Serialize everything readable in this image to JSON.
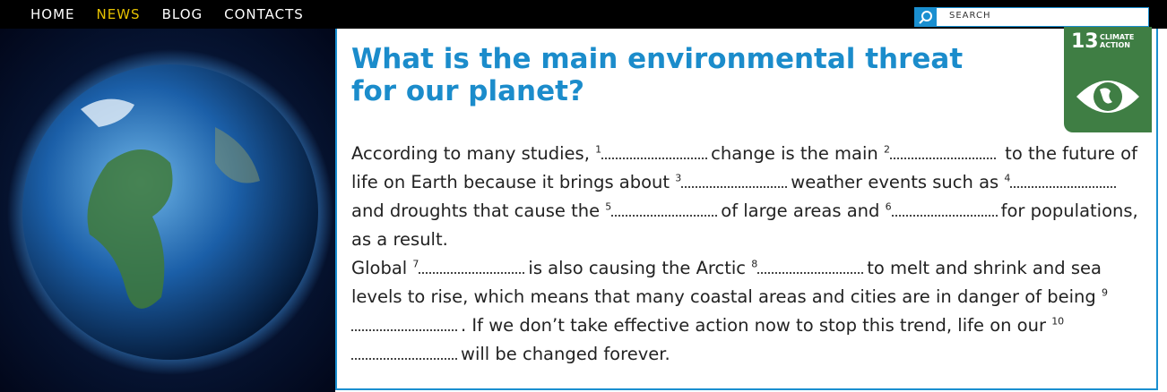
{
  "nav": [
    "HOME",
    "NEWS",
    "BLOG",
    "CONTACTS"
  ],
  "search": "SEARCH",
  "badge": {
    "number": "13",
    "label": "CLIMATE ACTION"
  },
  "article": {
    "title": "What is the main environmental threat for our planet?",
    "paragraphs": [
      [
        {
          "text": "According to many studies, "
        },
        {
          "gap": "1"
        },
        {
          "text": "change is the main "
        },
        {
          "gap": "2"
        },
        {
          "text": " to the future of life on Earth because it brings about "
        },
        {
          "gap": "3"
        },
        {
          "text": "weather events such as "
        },
        {
          "gap": "4"
        },
        {
          "text": "and droughts that cause the "
        },
        {
          "gap": "5"
        },
        {
          "text": "of large areas and "
        },
        {
          "gap": "6"
        },
        {
          "text": "for populations, as a result."
        }
      ],
      [
        {
          "text": "Global "
        },
        {
          "gap": "7"
        },
        {
          "text": "is also causing the Arctic "
        },
        {
          "gap": "8"
        },
        {
          "text": "to melt and shrink and sea levels to rise, which means that many coastal areas and cities are in danger of being "
        },
        {
          "gap": "9"
        },
        {
          "text": ". If we don’t take effective action now to stop this trend, life on our "
        },
        {
          "gap": "10"
        },
        {
          "text": "will be changed forever."
        }
      ]
    ]
  }
}
